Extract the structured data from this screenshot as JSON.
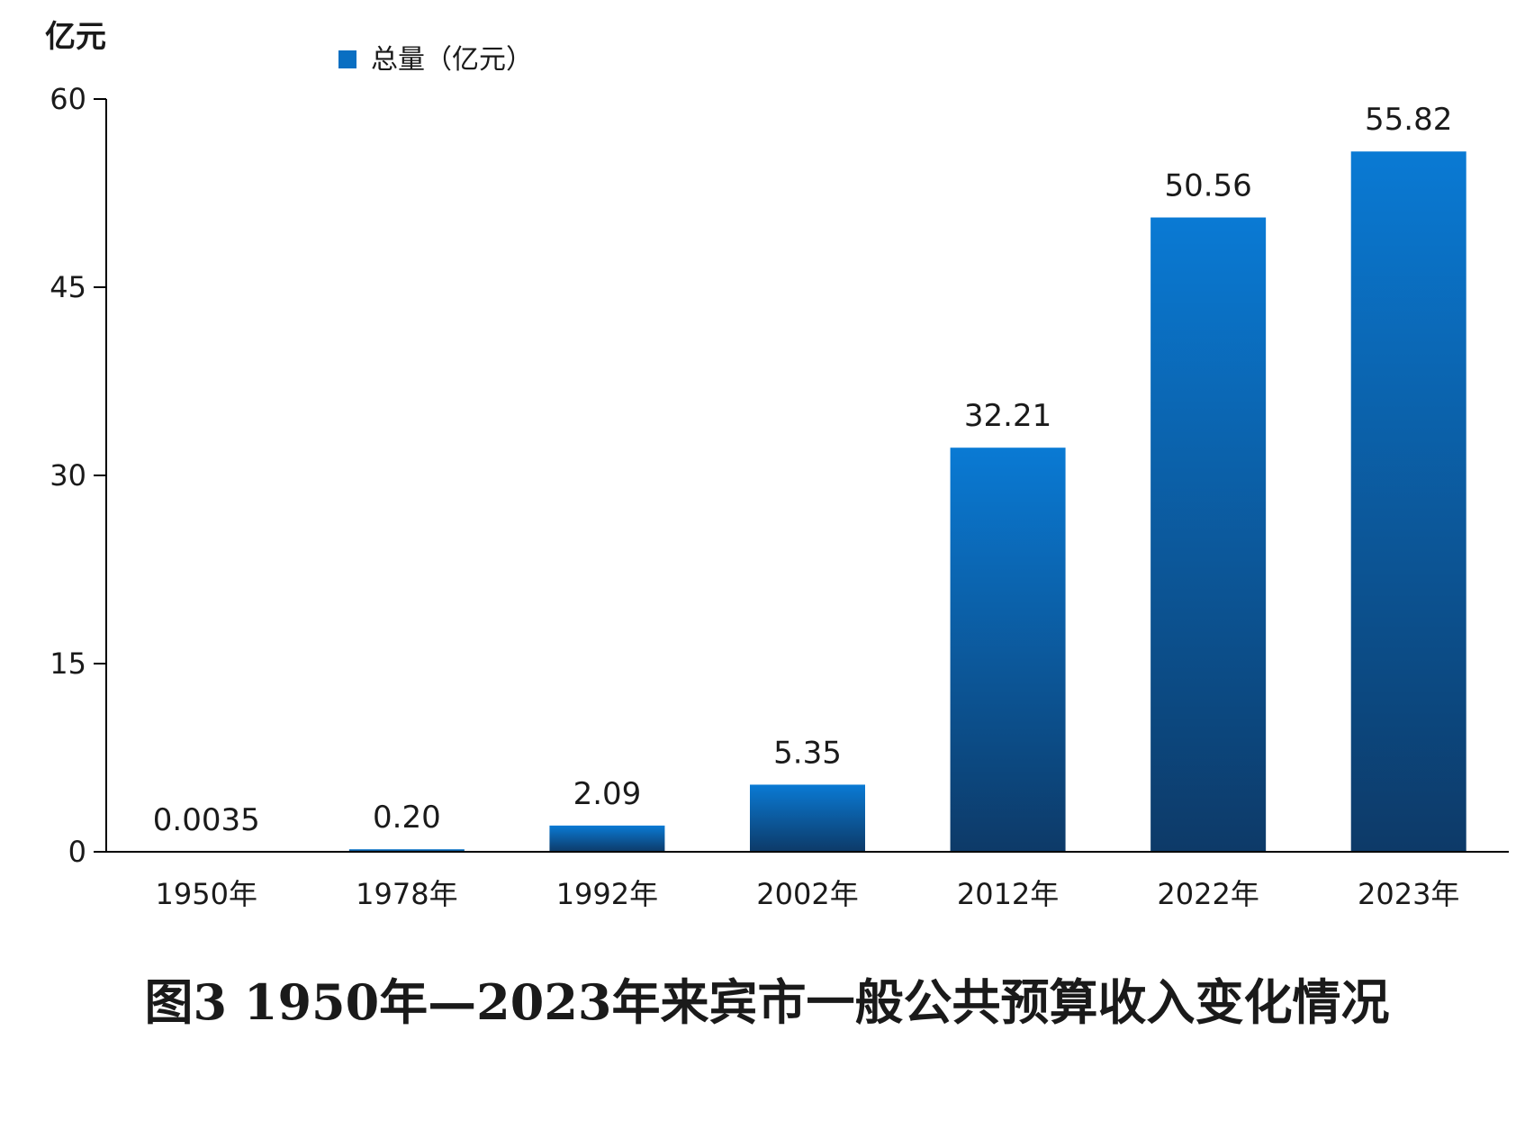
{
  "chart_data": {
    "type": "bar",
    "title": "图3 1950年—2023年来宾市一般公共预算收入变化情况",
    "ylabel": "亿元",
    "xlabel": "",
    "ylim": [
      0,
      60
    ],
    "yticks": [
      0,
      15,
      30,
      45,
      60
    ],
    "categories": [
      "1950年",
      "1978年",
      "1992年",
      "2002年",
      "2012年",
      "2022年",
      "2023年"
    ],
    "series": [
      {
        "name": "总量（亿元）",
        "values": [
          0.0035,
          0.2,
          2.09,
          5.35,
          32.21,
          50.56,
          55.82
        ],
        "value_labels": [
          "0.0035",
          "0.20",
          "2.09",
          "5.35",
          "32.21",
          "50.56",
          "55.82"
        ],
        "color_top": "#0a7ad4",
        "color_bottom": "#0d3a68"
      }
    ],
    "legend": "top-left",
    "grid": false,
    "accent_color": "#0a6fc2"
  }
}
